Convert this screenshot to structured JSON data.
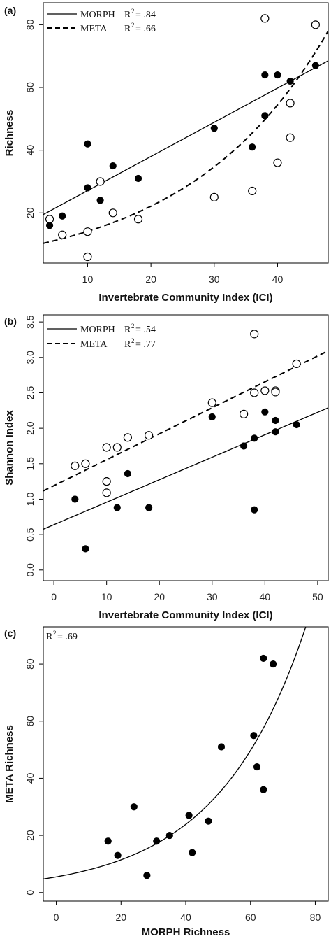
{
  "chart_data": [
    {
      "type": "scatter",
      "panel_label": "(a)",
      "xlabel": "Invertebrate Community Index (ICI)",
      "ylabel": "Richness",
      "xlim": [
        3,
        48
      ],
      "ylim": [
        4,
        87
      ],
      "xticks": [
        10,
        20,
        30,
        40
      ],
      "yticks": [
        20,
        40,
        60,
        80
      ],
      "legend_position": "top-left",
      "series": [
        {
          "name": "MORPH",
          "marker": "filled",
          "line_style": "solid",
          "r2_label": "R",
          "r2_sup": "2",
          "r2_value": "= .84",
          "fit": {
            "kind": "linear",
            "intercept": 16.2,
            "slope": 1.09
          },
          "points": [
            [
              4,
              16
            ],
            [
              6,
              19
            ],
            [
              10,
              28
            ],
            [
              10,
              42
            ],
            [
              12,
              24
            ],
            [
              14,
              35
            ],
            [
              18,
              31
            ],
            [
              30,
              47
            ],
            [
              36,
              41
            ],
            [
              38,
              51
            ],
            [
              38,
              64
            ],
            [
              40,
              64
            ],
            [
              42,
              62
            ],
            [
              46,
              67
            ]
          ]
        },
        {
          "name": "META",
          "marker": "open",
          "line_style": "dashed",
          "r2_label": "R",
          "r2_sup": "2",
          "r2_value": "= .66",
          "fit": {
            "kind": "exp",
            "a": 9.0,
            "b": 0.045
          },
          "points": [
            [
              4,
              18
            ],
            [
              6,
              13
            ],
            [
              10,
              6
            ],
            [
              10,
              14
            ],
            [
              12,
              30
            ],
            [
              14,
              20
            ],
            [
              18,
              18
            ],
            [
              30,
              25
            ],
            [
              36,
              27
            ],
            [
              38,
              82
            ],
            [
              40,
              36
            ],
            [
              42,
              44
            ],
            [
              42,
              55
            ],
            [
              46,
              80
            ]
          ]
        }
      ]
    },
    {
      "type": "scatter",
      "panel_label": "(b)",
      "xlabel": "Invertebrate Community Index (ICI)",
      "ylabel": "Shannon Index",
      "xlim": [
        -2,
        52
      ],
      "ylim": [
        -0.15,
        3.6
      ],
      "xticks": [
        0,
        10,
        20,
        30,
        40,
        50
      ],
      "yticks": [
        0.0,
        0.5,
        1.0,
        1.5,
        2.0,
        2.5,
        3.0,
        3.5
      ],
      "ytick_labels": [
        "0.0",
        "0.5",
        "1.0",
        "1.5",
        "2.0",
        "2.5",
        "3.0",
        "3.5"
      ],
      "legend_position": "top-left",
      "series": [
        {
          "name": "MORPH",
          "marker": "filled",
          "line_style": "solid",
          "r2_label": "R",
          "r2_sup": "2",
          "r2_value": "= .54",
          "fit": {
            "kind": "linear",
            "intercept": 0.64,
            "slope": 0.0317
          },
          "points": [
            [
              4,
              1.0
            ],
            [
              6,
              0.3
            ],
            [
              10,
              1.26
            ],
            [
              12,
              0.88
            ],
            [
              14,
              1.36
            ],
            [
              18,
              0.88
            ],
            [
              30,
              2.16
            ],
            [
              36,
              1.75
            ],
            [
              38,
              1.86
            ],
            [
              38,
              0.85
            ],
            [
              40,
              2.23
            ],
            [
              42,
              2.11
            ],
            [
              42,
              1.95
            ],
            [
              46,
              2.05
            ]
          ]
        },
        {
          "name": "META",
          "marker": "open",
          "line_style": "dashed",
          "r2_label": "R",
          "r2_sup": "2",
          "r2_value": "= .77",
          "fit": {
            "kind": "linear",
            "intercept": 1.19,
            "slope": 0.0366
          },
          "points": [
            [
              4,
              1.47
            ],
            [
              6,
              1.5
            ],
            [
              10,
              1.73
            ],
            [
              10,
              1.25
            ],
            [
              10,
              1.09
            ],
            [
              12,
              1.73
            ],
            [
              14,
              1.87
            ],
            [
              18,
              1.9
            ],
            [
              30,
              2.36
            ],
            [
              36,
              2.2
            ],
            [
              38,
              2.5
            ],
            [
              38,
              3.33
            ],
            [
              40,
              2.53
            ],
            [
              42,
              2.53
            ],
            [
              42,
              2.51
            ],
            [
              46,
              2.91
            ]
          ]
        }
      ]
    },
    {
      "type": "scatter",
      "panel_label": "(c)",
      "xlabel": "MORPH Richness",
      "ylabel": "META Richness",
      "xlim": [
        -4,
        84
      ],
      "ylim": [
        -3,
        93
      ],
      "xticks": [
        0,
        20,
        40,
        60,
        80
      ],
      "yticks": [
        0,
        20,
        40,
        60,
        80
      ],
      "r2_label": "R",
      "r2_sup": "2",
      "r2_value": "= .69",
      "series": [
        {
          "marker": "filled",
          "line_style": "solid",
          "fit": {
            "kind": "exp",
            "a": 5.5,
            "b": 0.0367
          },
          "points": [
            [
              16,
              18
            ],
            [
              19,
              13
            ],
            [
              24,
              30
            ],
            [
              28,
              6
            ],
            [
              31,
              18
            ],
            [
              35,
              20
            ],
            [
              41,
              27
            ],
            [
              42,
              14
            ],
            [
              47,
              25
            ],
            [
              51,
              51
            ],
            [
              61,
              55
            ],
            [
              62,
              44
            ],
            [
              64,
              36
            ],
            [
              64,
              82
            ],
            [
              67,
              80
            ]
          ]
        }
      ]
    }
  ]
}
